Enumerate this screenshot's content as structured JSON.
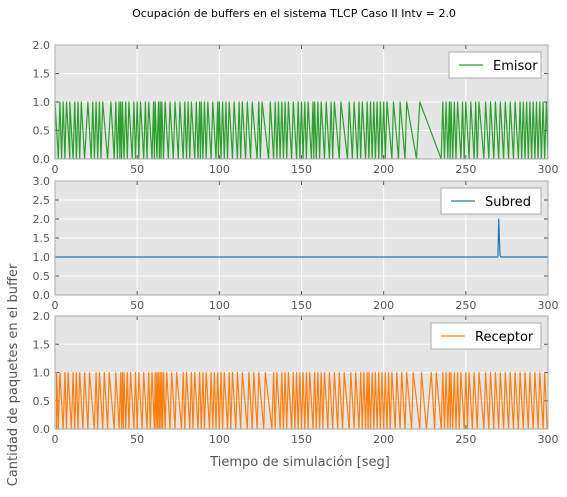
{
  "chart_data": {
    "type": "line",
    "title": "Ocupación de buffers en el sistema TLCP Caso II Intv = 2.0",
    "xlabel": "Tiempo de simulación [seg]",
    "ylabel": "Cantidad de paquetes en el buffer",
    "background": "#e5e5e5",
    "grid": true,
    "legend_position": "top-right",
    "xlim": [
      0,
      300
    ],
    "xticks": [
      "0",
      "50",
      "100",
      "150",
      "200",
      "250",
      "300"
    ],
    "subplots": [
      {
        "series_name": "Emisor",
        "color": "#2ca02c",
        "ylim": [
          0,
          2
        ],
        "yticks": [
          "0.0",
          "0.5",
          "1.0",
          "1.5",
          "2.0"
        ],
        "pattern": "sawtooth",
        "rise_times": [
          0,
          3,
          5,
          7,
          9,
          12,
          14,
          16,
          20,
          23,
          25,
          27,
          29,
          34,
          37,
          39,
          40,
          41,
          43,
          45,
          48,
          50,
          52,
          55,
          57,
          60,
          61,
          63,
          64,
          65,
          67,
          70,
          73,
          76,
          79,
          81,
          83,
          86,
          88,
          89,
          91,
          93,
          96,
          99,
          100,
          102,
          104,
          106,
          109,
          112,
          114,
          117,
          120,
          124,
          126,
          131,
          134,
          136,
          138,
          140,
          142,
          145,
          148,
          150,
          152,
          154,
          157,
          158,
          160,
          162,
          165,
          168,
          170,
          174,
          179,
          182,
          185,
          187,
          190,
          192,
          194,
          196,
          198,
          200,
          202,
          206,
          210,
          214,
          222,
          236,
          238,
          240,
          241,
          243,
          245,
          248,
          250,
          253,
          256,
          258,
          262,
          265,
          268,
          271,
          274,
          277,
          280,
          283,
          285,
          287,
          289,
          291,
          293,
          295,
          297,
          299
        ],
        "fall_times": [
          2,
          4,
          6,
          9,
          11,
          13,
          15,
          18,
          22,
          24,
          26,
          28,
          32,
          36,
          38,
          39.5,
          40.5,
          42,
          44,
          47,
          49,
          51,
          54,
          56,
          59,
          60.5,
          62,
          63.5,
          64.5,
          66,
          69,
          72,
          75,
          78,
          80,
          82,
          85,
          87,
          88.5,
          90,
          92,
          95,
          98,
          99.5,
          101,
          103,
          105,
          108,
          111,
          113,
          116,
          119,
          123,
          125,
          130,
          133,
          135,
          137,
          139,
          141,
          144,
          147,
          149,
          151,
          153,
          156,
          157.5,
          159,
          161,
          164,
          167,
          169,
          173,
          178,
          181,
          184,
          186,
          189,
          191,
          193,
          195,
          197,
          199,
          201,
          205,
          209,
          213,
          220,
          235,
          237,
          239,
          240.5,
          242,
          244,
          247,
          249,
          252,
          255,
          257,
          261,
          264,
          267,
          270,
          273,
          276,
          279,
          282,
          284,
          286,
          288,
          290,
          292,
          294,
          296,
          298,
          300
        ]
      },
      {
        "series_name": "Subred",
        "color": "#1f77b4",
        "ylim": [
          0,
          3
        ],
        "yticks": [
          "0.0",
          "0.5",
          "1.0",
          "1.5",
          "2.0",
          "2.5",
          "3.0"
        ],
        "x": [
          0,
          269.5,
          270,
          270.8,
          271.3,
          300
        ],
        "y": [
          1,
          1,
          2,
          1.05,
          1,
          1
        ]
      },
      {
        "series_name": "Receptor",
        "color": "#ff7f0e",
        "ylim": [
          0,
          2
        ],
        "yticks": [
          "0.0",
          "0.5",
          "1.0",
          "1.5",
          "2.0"
        ],
        "pattern": "sawtooth",
        "rise_times": [
          1,
          3,
          6,
          8,
          11,
          13,
          15,
          18,
          21,
          25,
          27,
          30,
          33,
          37,
          40,
          41,
          42,
          44,
          46,
          49,
          51,
          54,
          57,
          59,
          61,
          62,
          63,
          64,
          65,
          66,
          68,
          71,
          74,
          78,
          80,
          83,
          85,
          88,
          90,
          92,
          95,
          97,
          99,
          101,
          103,
          106,
          108,
          111,
          114,
          118,
          121,
          124,
          128,
          133,
          135,
          138,
          140,
          142,
          145,
          147,
          149,
          151,
          153,
          155,
          158,
          160,
          162,
          164,
          167,
          170,
          173,
          176,
          180,
          183,
          186,
          188,
          190,
          191,
          193,
          195,
          197,
          199,
          201,
          203,
          205,
          208,
          211,
          214,
          218,
          223,
          229,
          232,
          236,
          238,
          240,
          241,
          243,
          245,
          247,
          250,
          252,
          255,
          258,
          262,
          265,
          268,
          271,
          274,
          277,
          280,
          283,
          286,
          289,
          292,
          295,
          298
        ],
        "fall_times": [
          2,
          5,
          7,
          10,
          12,
          14,
          17,
          20,
          24,
          26,
          29,
          32,
          36,
          39,
          40.5,
          41.5,
          43,
          45,
          48,
          50,
          53,
          56,
          58,
          60.5,
          61.5,
          62.5,
          63.5,
          64.5,
          65.5,
          67,
          70,
          73,
          77,
          79,
          82,
          84,
          87,
          89,
          91,
          94,
          96,
          98,
          100,
          102,
          105,
          107,
          110,
          113,
          117,
          120,
          123,
          127,
          132,
          134,
          137,
          139,
          141,
          144,
          146,
          148,
          150,
          152,
          154,
          157,
          159,
          161,
          163,
          166,
          169,
          172,
          175,
          179,
          182,
          185,
          187,
          189,
          190.5,
          192,
          194,
          196,
          198,
          200,
          202,
          204,
          207,
          210,
          213,
          217,
          222,
          226,
          231,
          235,
          237,
          239,
          240.5,
          242,
          244,
          246,
          249,
          251,
          254,
          257,
          261,
          264,
          267,
          270,
          273,
          276,
          279,
          282,
          285,
          288,
          291,
          294,
          297,
          299.5
        ]
      }
    ]
  }
}
